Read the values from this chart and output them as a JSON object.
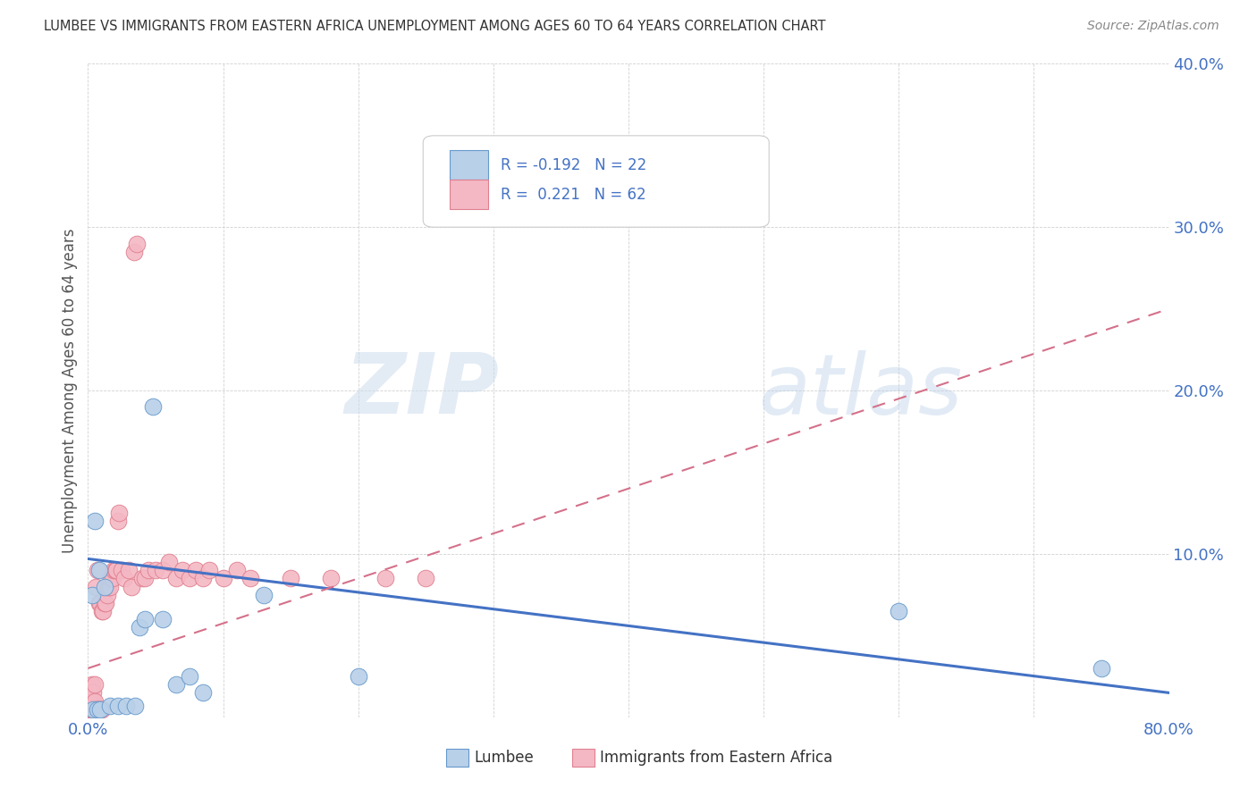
{
  "title": "LUMBEE VS IMMIGRANTS FROM EASTERN AFRICA UNEMPLOYMENT AMONG AGES 60 TO 64 YEARS CORRELATION CHART",
  "source": "Source: ZipAtlas.com",
  "ylabel": "Unemployment Among Ages 60 to 64 years",
  "xlim": [
    0,
    0.8
  ],
  "ylim": [
    0,
    0.4
  ],
  "color_blue_fill": "#b8d0e8",
  "color_blue_edge": "#6699cc",
  "color_pink_fill": "#f4b8c4",
  "color_pink_edge": "#e08090",
  "color_blue_line": "#4472c4",
  "color_pink_line": "#d4708a",
  "watermark_zip": "ZIP",
  "watermark_atlas": "atlas",
  "lumbee_x": [
    0.004,
    0.007,
    0.009,
    0.003,
    0.005,
    0.008,
    0.012,
    0.016,
    0.022,
    0.028,
    0.035,
    0.038,
    0.042,
    0.048,
    0.055,
    0.065,
    0.075,
    0.085,
    0.13,
    0.2,
    0.6,
    0.75
  ],
  "lumbee_y": [
    0.005,
    0.005,
    0.005,
    0.075,
    0.12,
    0.09,
    0.08,
    0.007,
    0.007,
    0.007,
    0.007,
    0.055,
    0.06,
    0.19,
    0.06,
    0.02,
    0.025,
    0.015,
    0.075,
    0.025,
    0.065,
    0.03
  ],
  "ea_x": [
    0.001,
    0.001,
    0.002,
    0.002,
    0.002,
    0.003,
    0.003,
    0.003,
    0.004,
    0.004,
    0.004,
    0.005,
    0.005,
    0.005,
    0.006,
    0.006,
    0.007,
    0.007,
    0.008,
    0.008,
    0.009,
    0.009,
    0.01,
    0.01,
    0.011,
    0.012,
    0.013,
    0.014,
    0.015,
    0.016,
    0.017,
    0.018,
    0.019,
    0.02,
    0.021,
    0.022,
    0.023,
    0.025,
    0.027,
    0.03,
    0.032,
    0.034,
    0.036,
    0.04,
    0.042,
    0.045,
    0.05,
    0.055,
    0.06,
    0.065,
    0.07,
    0.075,
    0.08,
    0.085,
    0.09,
    0.1,
    0.11,
    0.12,
    0.15,
    0.18,
    0.22,
    0.25
  ],
  "ea_y": [
    0.005,
    0.01,
    0.005,
    0.01,
    0.015,
    0.005,
    0.01,
    0.02,
    0.005,
    0.01,
    0.015,
    0.005,
    0.01,
    0.02,
    0.005,
    0.08,
    0.005,
    0.09,
    0.005,
    0.07,
    0.005,
    0.07,
    0.005,
    0.065,
    0.065,
    0.07,
    0.07,
    0.075,
    0.08,
    0.08,
    0.085,
    0.085,
    0.09,
    0.09,
    0.09,
    0.12,
    0.125,
    0.09,
    0.085,
    0.09,
    0.08,
    0.285,
    0.29,
    0.085,
    0.085,
    0.09,
    0.09,
    0.09,
    0.095,
    0.085,
    0.09,
    0.085,
    0.09,
    0.085,
    0.09,
    0.085,
    0.09,
    0.085,
    0.085,
    0.085,
    0.085,
    0.085
  ],
  "lumbee_line_x": [
    0.0,
    0.8
  ],
  "lumbee_line_y": [
    0.097,
    0.015
  ],
  "ea_line_x": [
    0.0,
    0.8
  ],
  "ea_line_y": [
    0.03,
    0.25
  ],
  "legend_items": [
    {
      "label": "R = -0.192   N = 22",
      "color_fill": "#b8d0e8",
      "color_edge": "#6699cc"
    },
    {
      "label": "R =  0.221   N = 62",
      "color_fill": "#f4b8c4",
      "color_edge": "#e08090"
    }
  ],
  "bottom_legend": [
    {
      "label": "Lumbee",
      "color_fill": "#b8d0e8",
      "color_edge": "#6699cc"
    },
    {
      "label": "Immigrants from Eastern Africa",
      "color_fill": "#f4b8c4",
      "color_edge": "#e08090"
    }
  ]
}
